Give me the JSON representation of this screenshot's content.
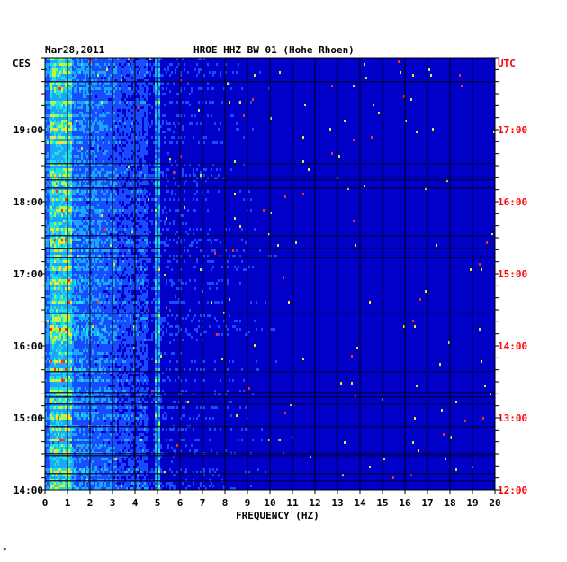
{
  "chart_data": {
    "type": "heatmap",
    "date": "Mar28,2011",
    "title": "HROE HHZ BW 01 (Hohe Rhoen)",
    "xlabel": "FREQUENCY (HZ)",
    "left_axis_label": "CES",
    "right_axis_label": "UTC",
    "xlim": [
      0,
      20
    ],
    "x_ticks": [
      "0",
      "1",
      "2",
      "3",
      "4",
      "5",
      "6",
      "7",
      "8",
      "9",
      "10",
      "11",
      "12",
      "13",
      "14",
      "15",
      "16",
      "17",
      "18",
      "19",
      "20"
    ],
    "left_ticks": [
      "19:00",
      "18:00",
      "17:00",
      "16:00",
      "15:00",
      "14:00"
    ],
    "right_ticks": [
      "17:00",
      "16:00",
      "15:00",
      "14:00",
      "13:00",
      "12:00"
    ],
    "time_range_utc": [
      "12:00",
      "18:00"
    ],
    "grid": true,
    "colors": {
      "background": "#0000c8",
      "grid": "#000000",
      "utc_label": "#ff0000",
      "text": "#000000"
    },
    "features": [
      {
        "freq_range_hz": [
          0.2,
          1.2
        ],
        "level": "high"
      },
      {
        "freq_range_hz": [
          1.2,
          3.2
        ],
        "level": "medium"
      },
      {
        "freq_range_hz": [
          4.9,
          5.0
        ],
        "level": "medium"
      },
      {
        "freq_range_hz": [
          16.6,
          16.7
        ],
        "level": "low"
      }
    ]
  },
  "footer_mark": "*"
}
